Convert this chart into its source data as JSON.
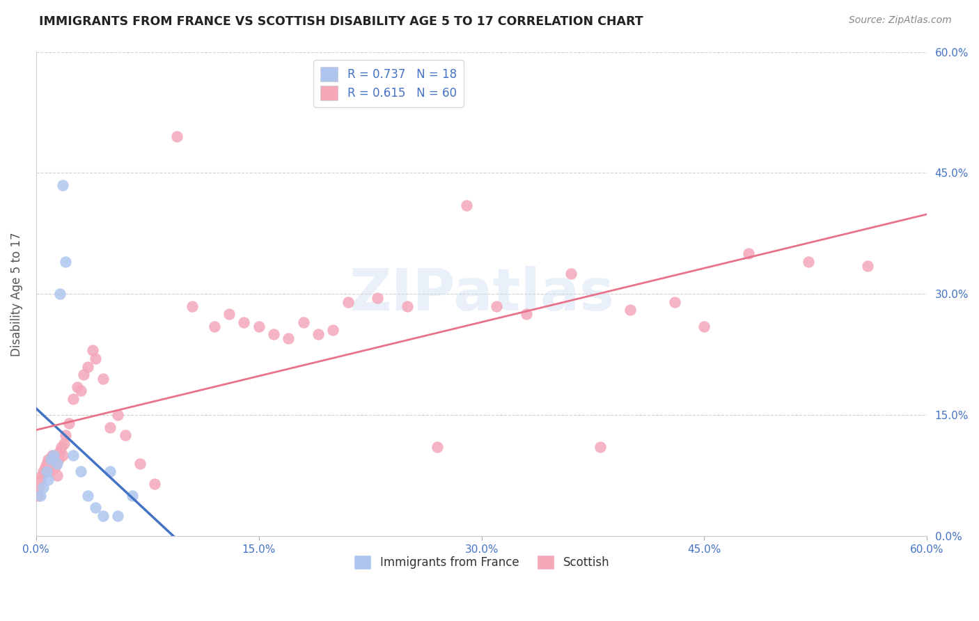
{
  "title": "IMMIGRANTS FROM FRANCE VS SCOTTISH DISABILITY AGE 5 TO 17 CORRELATION CHART",
  "source": "Source: ZipAtlas.com",
  "ylabel": "Disability Age 5 to 17",
  "xlim": [
    0.0,
    60.0
  ],
  "ylim": [
    0.0,
    60.0
  ],
  "tick_values": [
    0,
    15,
    30,
    45,
    60
  ],
  "tick_labels_pct": [
    "0.0%",
    "15.0%",
    "30.0%",
    "45.0%",
    "60.0%"
  ],
  "legend_box_labels": [
    "R = 0.737   N = 18",
    "R = 0.615   N = 60"
  ],
  "legend_bottom_labels": [
    "Immigrants from France",
    "Scottish"
  ],
  "blue_color": "#aec6ef",
  "pink_color": "#f4a7b9",
  "blue_line_color": "#4472c4",
  "pink_line_color": "#e8728a",
  "watermark": "ZIPatlas",
  "blue_x": [
    0.3,
    0.5,
    0.7,
    0.8,
    1.0,
    1.2,
    1.4,
    1.6,
    1.8,
    2.0,
    2.5,
    3.0,
    3.5,
    4.0,
    4.5,
    5.0,
    5.5,
    6.5
  ],
  "blue_y": [
    5.0,
    6.0,
    8.0,
    7.0,
    9.5,
    10.0,
    9.0,
    30.0,
    43.5,
    34.0,
    10.0,
    8.0,
    5.0,
    3.5,
    2.5,
    8.0,
    2.5,
    5.0
  ],
  "pink_x": [
    0.1,
    0.2,
    0.3,
    0.4,
    0.5,
    0.6,
    0.7,
    0.8,
    0.9,
    1.0,
    1.1,
    1.2,
    1.3,
    1.4,
    1.5,
    1.6,
    1.7,
    1.8,
    1.9,
    2.0,
    2.2,
    2.5,
    2.8,
    3.0,
    3.2,
    3.5,
    3.8,
    4.0,
    4.5,
    5.0,
    5.5,
    6.0,
    7.0,
    8.0,
    9.5,
    10.5,
    12.0,
    13.0,
    14.0,
    15.0,
    16.0,
    17.0,
    18.0,
    19.0,
    20.0,
    21.0,
    23.0,
    25.0,
    27.0,
    29.0,
    31.0,
    33.0,
    36.0,
    38.0,
    40.0,
    43.0,
    45.0,
    48.0,
    52.0,
    56.0
  ],
  "pink_y": [
    5.0,
    6.0,
    7.0,
    7.5,
    8.0,
    8.5,
    9.0,
    9.5,
    8.0,
    9.0,
    10.0,
    9.5,
    8.5,
    7.5,
    9.5,
    10.5,
    11.0,
    10.0,
    11.5,
    12.5,
    14.0,
    17.0,
    18.5,
    18.0,
    20.0,
    21.0,
    23.0,
    22.0,
    19.5,
    13.5,
    15.0,
    12.5,
    9.0,
    6.5,
    49.5,
    28.5,
    26.0,
    27.5,
    26.5,
    26.0,
    25.0,
    24.5,
    26.5,
    25.0,
    25.5,
    29.0,
    29.5,
    28.5,
    11.0,
    41.0,
    28.5,
    27.5,
    32.5,
    11.0,
    28.0,
    29.0,
    26.0,
    35.0,
    34.0,
    33.5
  ]
}
